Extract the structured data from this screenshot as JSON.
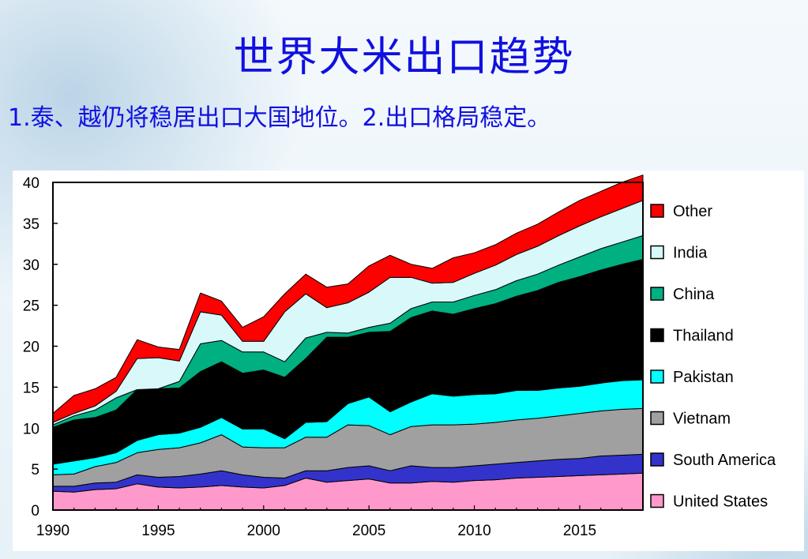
{
  "slide": {
    "title": "世界大米出口趋势",
    "subtitle": "1.泰、越仍将稳居出口大国地位。2.出口格局稳定。"
  },
  "chart_data": {
    "type": "area",
    "stacked": true,
    "title": "",
    "xlabel": "",
    "ylabel": "",
    "xlim": [
      1990,
      2018
    ],
    "ylim": [
      0,
      40
    ],
    "x_ticks": [
      1990,
      1995,
      2000,
      2005,
      2010,
      2015
    ],
    "y_ticks": [
      0,
      5,
      10,
      15,
      20,
      25,
      30,
      35,
      40
    ],
    "grid": false,
    "legend_position": "right",
    "x": [
      1990,
      1991,
      1992,
      1993,
      1994,
      1995,
      1996,
      1997,
      1998,
      1999,
      2000,
      2001,
      2002,
      2003,
      2004,
      2005,
      2006,
      2007,
      2008,
      2009,
      2010,
      2011,
      2012,
      2013,
      2014,
      2015,
      2016,
      2017,
      2018
    ],
    "series": [
      {
        "name": "United States",
        "color": "#ff99cc",
        "values": [
          2.3,
          2.2,
          2.5,
          2.6,
          3.2,
          2.8,
          2.7,
          2.8,
          3.0,
          2.8,
          2.7,
          3.0,
          3.9,
          3.4,
          3.6,
          3.8,
          3.3,
          3.3,
          3.5,
          3.4,
          3.6,
          3.7,
          3.9,
          4.0,
          4.1,
          4.2,
          4.3,
          4.4,
          4.5
        ]
      },
      {
        "name": "South America",
        "color": "#3333cc",
        "values": [
          0.6,
          0.7,
          0.8,
          0.8,
          1.1,
          1.2,
          1.4,
          1.6,
          1.8,
          1.5,
          1.3,
          0.9,
          0.9,
          1.4,
          1.6,
          1.6,
          1.5,
          2.1,
          1.7,
          1.8,
          1.8,
          1.9,
          1.9,
          2.0,
          2.1,
          2.1,
          2.3,
          2.3,
          2.3
        ]
      },
      {
        "name": "Vietnam",
        "color": "#a0a0a0",
        "values": [
          1.4,
          1.5,
          2.0,
          2.4,
          2.7,
          3.4,
          3.5,
          3.8,
          4.4,
          3.4,
          3.6,
          3.7,
          4.1,
          4.1,
          5.2,
          4.9,
          4.4,
          4.8,
          5.2,
          5.2,
          5.1,
          5.1,
          5.2,
          5.2,
          5.3,
          5.5,
          5.5,
          5.6,
          5.6
        ]
      },
      {
        "name": "Pakistan",
        "color": "#00ffff",
        "values": [
          1.3,
          1.6,
          1.1,
          1.2,
          1.5,
          1.8,
          1.8,
          1.9,
          2.1,
          2.2,
          2.3,
          1.1,
          1.8,
          1.9,
          2.6,
          3.5,
          2.8,
          3.0,
          3.8,
          3.5,
          3.6,
          3.5,
          3.6,
          3.4,
          3.4,
          3.3,
          3.4,
          3.5,
          3.5
        ]
      },
      {
        "name": "Thailand",
        "color": "#000000",
        "values": [
          4.5,
          5.0,
          4.9,
          5.2,
          6.2,
          5.6,
          5.5,
          6.8,
          6.8,
          6.8,
          7.2,
          7.5,
          7.8,
          10.3,
          8.1,
          7.9,
          9.8,
          10.3,
          10.1,
          10.0,
          10.5,
          11.0,
          11.5,
          12.2,
          12.9,
          13.4,
          13.8,
          14.2,
          14.7
        ]
      },
      {
        "name": "China",
        "color": "#00b080",
        "values": [
          0.3,
          0.5,
          0.9,
          1.5,
          0.0,
          0.0,
          0.8,
          3.4,
          2.6,
          2.6,
          2.2,
          1.9,
          2.5,
          0.6,
          0.5,
          0.6,
          1.0,
          1.1,
          1.1,
          1.5,
          1.6,
          1.7,
          1.9,
          2.0,
          2.1,
          2.4,
          2.6,
          2.7,
          2.9
        ]
      },
      {
        "name": "India",
        "color": "#d8f8fa",
        "values": [
          0.3,
          0.3,
          0.5,
          0.8,
          3.8,
          3.8,
          2.5,
          3.9,
          3.1,
          1.3,
          1.3,
          6.1,
          5.4,
          3.0,
          3.7,
          4.3,
          5.6,
          3.8,
          2.3,
          2.4,
          2.7,
          3.0,
          3.2,
          3.4,
          3.6,
          3.8,
          3.9,
          4.1,
          4.3
        ]
      },
      {
        "name": "Other",
        "color": "#ff0000",
        "values": [
          1.1,
          2.2,
          2.1,
          1.7,
          2.3,
          1.3,
          1.4,
          2.3,
          1.7,
          1.7,
          3.0,
          2.2,
          2.4,
          2.5,
          2.3,
          3.2,
          2.7,
          1.6,
          1.8,
          3.0,
          2.5,
          2.5,
          2.6,
          2.7,
          2.9,
          3.1,
          3.1,
          3.2,
          3.1
        ]
      }
    ]
  }
}
